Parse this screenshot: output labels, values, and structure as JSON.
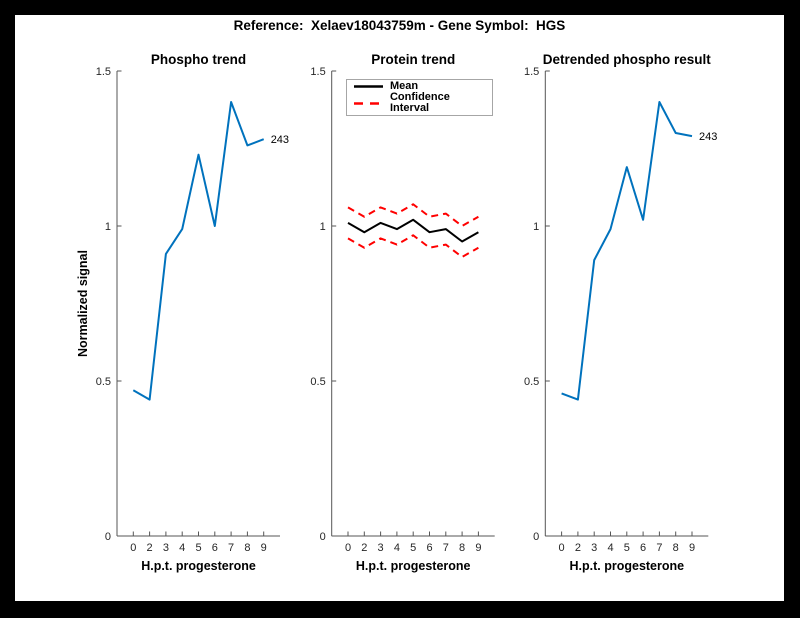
{
  "figure": {
    "title": "Reference:  Xelaev18043759m - Gene Symbol:  HGS",
    "background_color": "#ffffff",
    "frame_color": "#000000"
  },
  "legend": {
    "position": "top-left-of-middle-plot",
    "items": [
      {
        "label": "Mean",
        "color": "#000000",
        "style": "solid"
      },
      {
        "label": "Confidence Interval",
        "color": "#ff0000",
        "style": "dashed"
      }
    ]
  },
  "colors": {
    "line_blue": "#0072BD",
    "ci_red": "#ff0000",
    "axis": "#555555",
    "tick_text": "#262626"
  },
  "chart_data": [
    {
      "type": "line",
      "title": "Phospho trend",
      "xlabel": "H.p.t. progesterone",
      "ylabel": "Normalized signal",
      "categories": [
        "0",
        "2",
        "3",
        "4",
        "5",
        "6",
        "7",
        "8",
        "9"
      ],
      "ylim": [
        0,
        1.5
      ],
      "yticks": [
        0,
        0.5,
        1,
        1.5
      ],
      "ytick_labels": [
        "0",
        "0.5",
        "1",
        "1.5"
      ],
      "grid": false,
      "series": [
        {
          "name": "phospho-243",
          "color": "#0072BD",
          "style": "solid",
          "width": 2,
          "values": [
            0.47,
            0.44,
            0.91,
            0.99,
            1.23,
            1.0,
            1.4,
            1.26,
            1.28
          ],
          "end_label": "243"
        }
      ]
    },
    {
      "type": "line",
      "title": "Protein trend",
      "xlabel": "H.p.t. progesterone",
      "ylabel": "",
      "categories": [
        "0",
        "2",
        "3",
        "4",
        "5",
        "6",
        "7",
        "8",
        "9"
      ],
      "ylim": [
        0,
        1.5
      ],
      "yticks": [
        0,
        0.5,
        1,
        1.5
      ],
      "ytick_labels": [
        "0",
        "0.5",
        "1",
        "1.5"
      ],
      "grid": false,
      "legend_entries": [
        "Mean",
        "Confidence Interval"
      ],
      "series": [
        {
          "name": "mean",
          "color": "#000000",
          "style": "solid",
          "width": 2,
          "values": [
            1.01,
            0.98,
            1.01,
            0.99,
            1.02,
            0.98,
            0.99,
            0.95,
            0.98
          ]
        },
        {
          "name": "ci-upper",
          "color": "#ff0000",
          "style": "dashed",
          "width": 2,
          "values": [
            1.06,
            1.03,
            1.06,
            1.04,
            1.07,
            1.03,
            1.04,
            1.0,
            1.03
          ]
        },
        {
          "name": "ci-lower",
          "color": "#ff0000",
          "style": "dashed",
          "width": 2,
          "values": [
            0.96,
            0.93,
            0.96,
            0.94,
            0.97,
            0.93,
            0.94,
            0.9,
            0.93
          ]
        }
      ]
    },
    {
      "type": "line",
      "title": "Detrended phospho result",
      "xlabel": "H.p.t. progesterone",
      "ylabel": "",
      "categories": [
        "0",
        "2",
        "3",
        "4",
        "5",
        "6",
        "7",
        "8",
        "9"
      ],
      "ylim": [
        0,
        1.5
      ],
      "yticks": [
        0,
        0.5,
        1,
        1.5
      ],
      "ytick_labels": [
        "0",
        "0.5",
        "1",
        "1.5"
      ],
      "grid": false,
      "series": [
        {
          "name": "detrended-243",
          "color": "#0072BD",
          "style": "solid",
          "width": 2,
          "values": [
            0.46,
            0.44,
            0.89,
            0.99,
            1.19,
            1.02,
            1.4,
            1.3,
            1.29
          ],
          "end_label": "243"
        }
      ]
    }
  ]
}
